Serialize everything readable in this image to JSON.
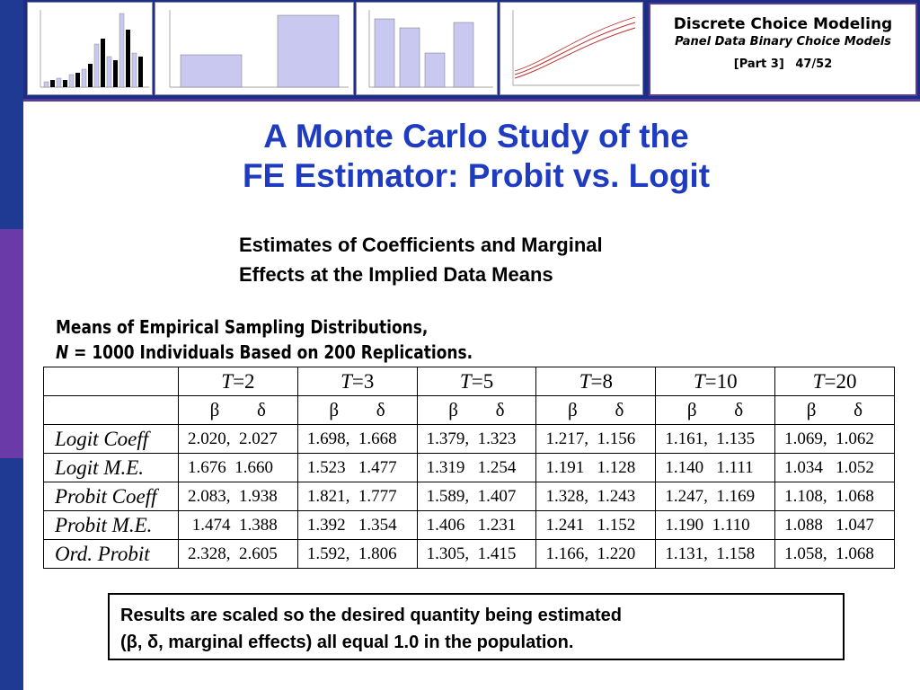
{
  "header": {
    "course_title": "Discrete Choice Modeling",
    "subtitle": "Panel Data Binary Choice Models",
    "part": "[Part 3]",
    "page": "47/52"
  },
  "slide": {
    "title_line1": "A Monte Carlo Study of the",
    "title_line2": "FE Estimator: Probit vs. Logit",
    "subheading_line1": "Estimates of Coefficients and Marginal",
    "subheading_line2": "Effects at the Implied Data Means"
  },
  "table": {
    "caption_line1": "Means of Empirical Sampling Distributions,",
    "caption_n": "N",
    "caption_line2_rest": " = 1000 Individuals Based on 200 Replications.",
    "t_symbol": "T",
    "columns": [
      "=2",
      "=3",
      "=5",
      "=8",
      "=10",
      "=20"
    ],
    "beta": "β",
    "delta": "δ",
    "rows": [
      {
        "label": "Logit Coeff",
        "values": [
          "2.020,  2.027",
          "1.698,  1.668",
          "1.379,  1.323",
          "1.217,  1.156",
          "1.161,  1.135",
          "1.069,  1.062"
        ]
      },
      {
        "label": "Logit M.E.",
        "values": [
          "1.676  1.660",
          "1.523   1.477",
          "1.319   1.254",
          "1.191   1.128",
          "1.140   1.111",
          "1.034   1.052"
        ]
      },
      {
        "label": "Probit Coeff",
        "values": [
          "2.083,  1.938",
          "1.821,  1.777",
          "1.589,  1.407",
          "1.328,  1.243",
          "1.247,  1.169",
          "1.108,  1.068"
        ]
      },
      {
        "label": "Probit M.E.",
        "values": [
          " 1.474  1.388",
          "1.392   1.354",
          "1.406   1.231",
          "1.241   1.152",
          "1.190  1.110",
          "1.088   1.047"
        ]
      },
      {
        "label": "Ord. Probit",
        "values": [
          "2.328,  2.605",
          "1.592,  1.806",
          "1.305,  1.415",
          "1.166,  1.220",
          "1.131,  1.158",
          "1.058,  1.068"
        ]
      }
    ]
  },
  "note": {
    "line1": "Results are scaled so the desired quantity being estimated",
    "line2": "(β, δ, marginal effects) all equal 1.0 in the population."
  },
  "colors": {
    "title_blue": "#1f3cc0",
    "header_navy": "#1c2f84",
    "accent_purple": "#6a3aa8"
  }
}
